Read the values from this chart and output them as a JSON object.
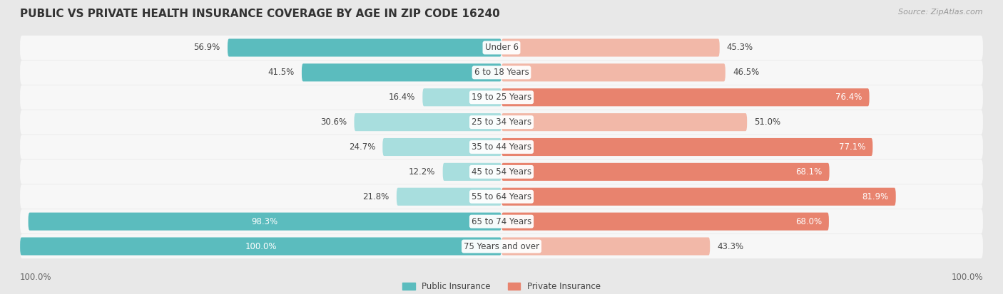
{
  "title": "PUBLIC VS PRIVATE HEALTH INSURANCE COVERAGE BY AGE IN ZIP CODE 16240",
  "source": "Source: ZipAtlas.com",
  "categories": [
    "Under 6",
    "6 to 18 Years",
    "19 to 25 Years",
    "25 to 34 Years",
    "35 to 44 Years",
    "45 to 54 Years",
    "55 to 64 Years",
    "65 to 74 Years",
    "75 Years and over"
  ],
  "public_values": [
    56.9,
    41.5,
    16.4,
    30.6,
    24.7,
    12.2,
    21.8,
    98.3,
    100.0
  ],
  "private_values": [
    45.3,
    46.5,
    76.4,
    51.0,
    77.1,
    68.1,
    81.9,
    68.0,
    43.3
  ],
  "public_color": "#5bbcbe",
  "private_color": "#e8836e",
  "public_color_light": "#a8dede",
  "private_color_light": "#f2b8a8",
  "background_color": "#e8e8e8",
  "row_bg_color": "#f7f7f7",
  "row_bg_alt": "#eeeeee",
  "axis_label_left": "100.0%",
  "axis_label_right": "100.0%",
  "legend_public": "Public Insurance",
  "legend_private": "Private Insurance",
  "title_fontsize": 11,
  "source_fontsize": 8,
  "bar_fontsize": 8.5,
  "label_fontsize": 8.5
}
